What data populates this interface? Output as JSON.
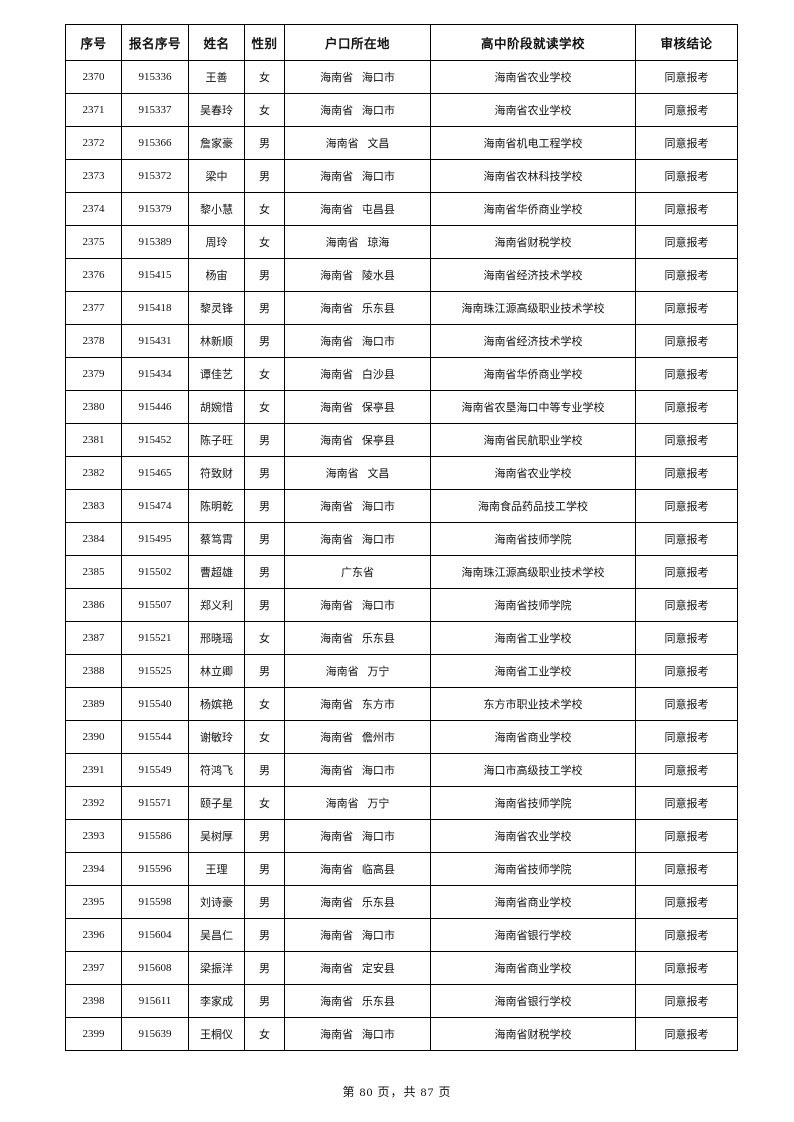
{
  "table": {
    "columns": [
      "序号",
      "报名序号",
      "姓名",
      "性别",
      "户口所在地",
      "高中阶段就读学校",
      "审核结论"
    ],
    "rows": [
      [
        "2370",
        "915336",
        "王善",
        "女",
        "海南省 海口市",
        "海南省农业学校",
        "同意报考"
      ],
      [
        "2371",
        "915337",
        "吴春玲",
        "女",
        "海南省 海口市",
        "海南省农业学校",
        "同意报考"
      ],
      [
        "2372",
        "915366",
        "詹家豪",
        "男",
        "海南省 文昌",
        "海南省机电工程学校",
        "同意报考"
      ],
      [
        "2373",
        "915372",
        "梁中",
        "男",
        "海南省 海口市",
        "海南省农林科技学校",
        "同意报考"
      ],
      [
        "2374",
        "915379",
        "黎小慧",
        "女",
        "海南省 屯昌县",
        "海南省华侨商业学校",
        "同意报考"
      ],
      [
        "2375",
        "915389",
        "周玲",
        "女",
        "海南省 琼海",
        "海南省财税学校",
        "同意报考"
      ],
      [
        "2376",
        "915415",
        "杨宙",
        "男",
        "海南省 陵水县",
        "海南省经济技术学校",
        "同意报考"
      ],
      [
        "2377",
        "915418",
        "黎灵锋",
        "男",
        "海南省 乐东县",
        "海南珠江源高级职业技术学校",
        "同意报考"
      ],
      [
        "2378",
        "915431",
        "林新顺",
        "男",
        "海南省 海口市",
        "海南省经济技术学校",
        "同意报考"
      ],
      [
        "2379",
        "915434",
        "谭佳艺",
        "女",
        "海南省 白沙县",
        "海南省华侨商业学校",
        "同意报考"
      ],
      [
        "2380",
        "915446",
        "胡婉惜",
        "女",
        "海南省 保亭县",
        "海南省农垦海口中等专业学校",
        "同意报考"
      ],
      [
        "2381",
        "915452",
        "陈子旺",
        "男",
        "海南省 保亭县",
        "海南省民航职业学校",
        "同意报考"
      ],
      [
        "2382",
        "915465",
        "符致财",
        "男",
        "海南省 文昌",
        "海南省农业学校",
        "同意报考"
      ],
      [
        "2383",
        "915474",
        "陈明乾",
        "男",
        "海南省 海口市",
        "海南食品药品技工学校",
        "同意报考"
      ],
      [
        "2384",
        "915495",
        "蔡笃霄",
        "男",
        "海南省 海口市",
        "海南省技师学院",
        "同意报考"
      ],
      [
        "2385",
        "915502",
        "曹超雄",
        "男",
        "广东省",
        "海南珠江源高级职业技术学校",
        "同意报考"
      ],
      [
        "2386",
        "915507",
        "郑义利",
        "男",
        "海南省 海口市",
        "海南省技师学院",
        "同意报考"
      ],
      [
        "2387",
        "915521",
        "邢晓瑶",
        "女",
        "海南省 乐东县",
        "海南省工业学校",
        "同意报考"
      ],
      [
        "2388",
        "915525",
        "林立卿",
        "男",
        "海南省 万宁",
        "海南省工业学校",
        "同意报考"
      ],
      [
        "2389",
        "915540",
        "杨嫔艳",
        "女",
        "海南省 东方市",
        "东方市职业技术学校",
        "同意报考"
      ],
      [
        "2390",
        "915544",
        "谢敏玲",
        "女",
        "海南省 儋州市",
        "海南省商业学校",
        "同意报考"
      ],
      [
        "2391",
        "915549",
        "符鸿飞",
        "男",
        "海南省 海口市",
        "海口市高级技工学校",
        "同意报考"
      ],
      [
        "2392",
        "915571",
        "颐子星",
        "女",
        "海南省 万宁",
        "海南省技师学院",
        "同意报考"
      ],
      [
        "2393",
        "915586",
        "吴树厚",
        "男",
        "海南省 海口市",
        "海南省农业学校",
        "同意报考"
      ],
      [
        "2394",
        "915596",
        "王理",
        "男",
        "海南省 临高县",
        "海南省技师学院",
        "同意报考"
      ],
      [
        "2395",
        "915598",
        "刘诗豪",
        "男",
        "海南省 乐东县",
        "海南省商业学校",
        "同意报考"
      ],
      [
        "2396",
        "915604",
        "吴昌仁",
        "男",
        "海南省 海口市",
        "海南省银行学校",
        "同意报考"
      ],
      [
        "2397",
        "915608",
        "梁振洋",
        "男",
        "海南省 定安县",
        "海南省商业学校",
        "同意报考"
      ],
      [
        "2398",
        "915611",
        "李家成",
        "男",
        "海南省 乐东县",
        "海南省银行学校",
        "同意报考"
      ],
      [
        "2399",
        "915639",
        "王桐仪",
        "女",
        "海南省 海口市",
        "海南省财税学校",
        "同意报考"
      ]
    ]
  },
  "footer": {
    "page_indicator": "第 80 页，共 87 页"
  }
}
